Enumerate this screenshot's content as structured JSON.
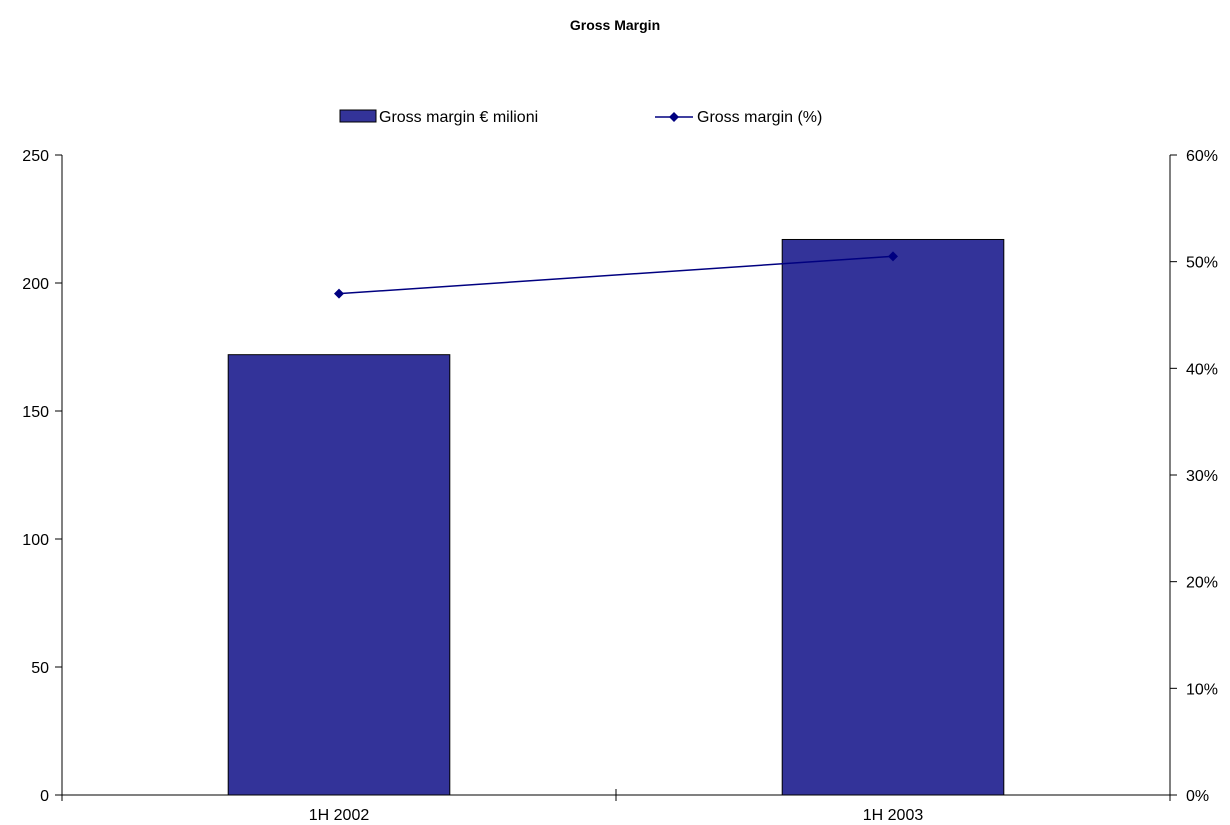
{
  "chart_data": {
    "type": "bar",
    "title": "Gross Margin",
    "categories": [
      "1H 2002",
      "1H 2003"
    ],
    "series": [
      {
        "name": "Gross margin € milioni",
        "type": "bar",
        "axis": "left",
        "values": [
          172,
          217
        ]
      },
      {
        "name": "Gross margin (%)",
        "type": "line",
        "axis": "right",
        "values": [
          0.47,
          0.505
        ]
      }
    ],
    "y_left": {
      "ylim": [
        0,
        250
      ],
      "ticks": [
        0,
        50,
        100,
        150,
        200,
        250
      ],
      "tick_labels": [
        "0",
        "50",
        "100",
        "150",
        "200",
        "250"
      ]
    },
    "y_right": {
      "ylim": [
        0,
        0.6
      ],
      "ticks": [
        0,
        0.1,
        0.2,
        0.3,
        0.4,
        0.5,
        0.6
      ],
      "tick_labels": [
        "0%",
        "10%",
        "20%",
        "30%",
        "40%",
        "50%",
        "60%"
      ]
    },
    "grid": false,
    "legend_position": "top-center",
    "colors": {
      "bar_fill": "#333399",
      "bar_stroke": "#000000",
      "line": "#000080"
    }
  }
}
